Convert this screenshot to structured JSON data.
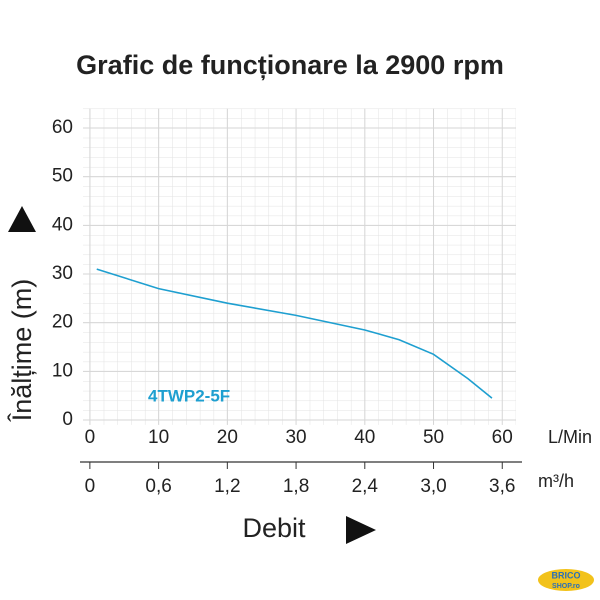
{
  "chart_data": {
    "type": "line",
    "title": "Grafic de funcționare la 2900 rpm",
    "y_label": "Înălțime (m)",
    "x_label": "Debit",
    "x_unit": "L/Min",
    "x2_unit": "m³/h",
    "x": [
      1,
      10,
      20,
      30,
      40,
      45,
      50,
      55,
      58.5
    ],
    "series": [
      {
        "name": "4TWP2-5F",
        "color": "#1e9fd0",
        "values": [
          31,
          27,
          24,
          21.5,
          18.5,
          16.5,
          13.5,
          8.5,
          4.5
        ]
      }
    ],
    "xlim": [
      -1,
      62
    ],
    "xticks": [
      0,
      10,
      20,
      30,
      40,
      50,
      60
    ],
    "ylim": [
      -1,
      64
    ],
    "yticks": [
      0,
      10,
      20,
      30,
      40,
      50,
      60
    ],
    "x2lim": [
      -0.06,
      3.72
    ],
    "x2ticks": [
      0,
      {
        "value": 0.6,
        "label": "0,6"
      },
      {
        "value": 1.2,
        "label": "1,2"
      },
      {
        "value": 1.8,
        "label": "1,8"
      },
      {
        "value": 2.4,
        "label": "2,4"
      },
      {
        "value": 3.0,
        "label": "3,0"
      },
      {
        "value": 3.6,
        "label": "3,6"
      }
    ],
    "grid": true,
    "logo": [
      "BRICO",
      "SHOP.ro"
    ]
  }
}
